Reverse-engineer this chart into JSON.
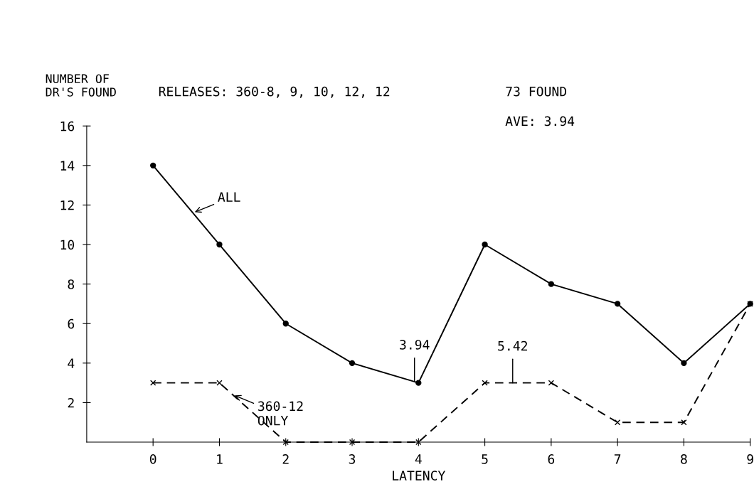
{
  "chart_data": {
    "type": "line",
    "ylabel": "NUMBER OF\nDR'S FOUND",
    "xlabel": "LATENCY",
    "x": [
      0,
      1,
      2,
      3,
      4,
      5,
      6,
      7,
      8,
      9
    ],
    "series": [
      {
        "name": "ALL",
        "color": "#000000",
        "marker": "circle",
        "line_style": "solid",
        "values": [
          14,
          10,
          6,
          4,
          3,
          10,
          8,
          7,
          4,
          7
        ]
      },
      {
        "name": "360-12\nONLY",
        "color": "#000000",
        "marker": "cross",
        "line_style": "dashed",
        "values": [
          3,
          3,
          0,
          0,
          0,
          3,
          3,
          1,
          1,
          7
        ]
      }
    ],
    "xlim": [
      -1,
      9
    ],
    "xticks": [
      0,
      1,
      2,
      3,
      4,
      5,
      6,
      7,
      8,
      9
    ],
    "ylim": [
      0,
      16
    ],
    "yticks": [
      2,
      4,
      6,
      8,
      10,
      12,
      14,
      16
    ],
    "grid": false,
    "annotations": [
      "RELEASES: 360-8, 9, 10, 12, 12",
      "73 FOUND",
      "AVE: 3.94",
      {
        "text": "3.94",
        "x": 3.94,
        "y": 3.06
      },
      {
        "text": "5.42",
        "x": 5.42,
        "y": 3
      }
    ]
  }
}
